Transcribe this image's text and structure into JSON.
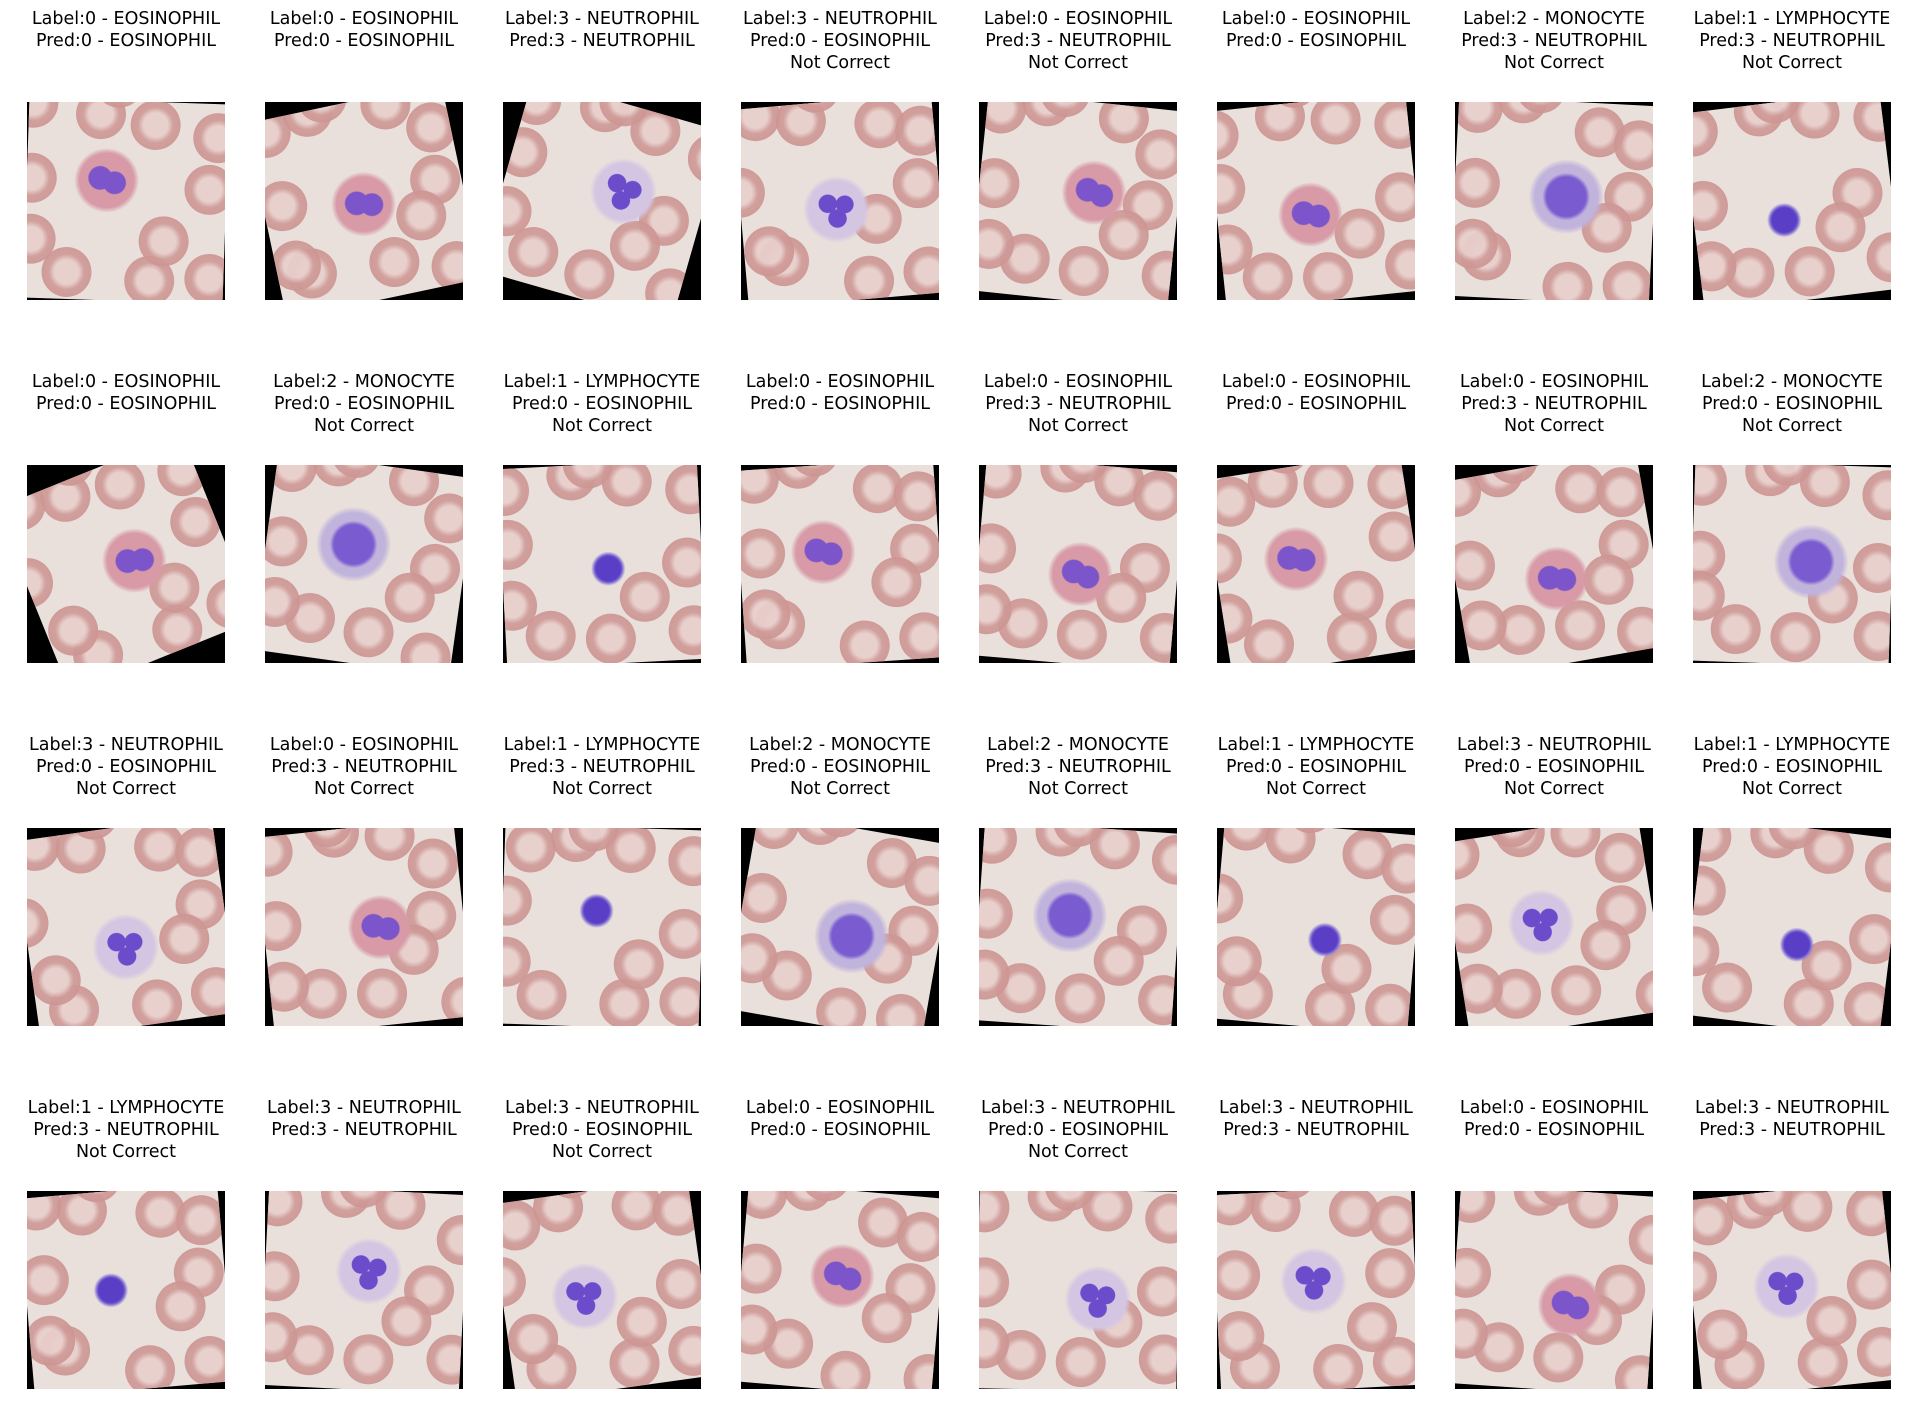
{
  "palette": {
    "cytoplasm": "#c9b8d8",
    "nucleus": "#6a4bc8",
    "rbc": "#cf9b98",
    "background": "#e9e0dc"
  },
  "panels": [
    {
      "label": "Label:0 - EOSINOPHIL",
      "pred": "Pred:0 - EOSINOPHIL",
      "status": "",
      "cell_type": "eosinophil",
      "rotation_deg": 2
    },
    {
      "label": "Label:0 - EOSINOPHIL",
      "pred": "Pred:0 - EOSINOPHIL",
      "status": "",
      "cell_type": "eosinophil",
      "rotation_deg": -12
    },
    {
      "label": "Label:3 - NEUTROPHIL",
      "pred": "Pred:3 - NEUTROPHIL",
      "status": "",
      "cell_type": "neutrophil",
      "rotation_deg": 16
    },
    {
      "label": "Label:3 - NEUTROPHIL",
      "pred": "Pred:0 - EOSINOPHIL",
      "status": "Not Correct",
      "cell_type": "neutrophil",
      "rotation_deg": -5
    },
    {
      "label": "Label:0 - EOSINOPHIL",
      "pred": "Pred:3 - NEUTROPHIL",
      "status": "Not Correct",
      "cell_type": "eosinophil",
      "rotation_deg": 6
    },
    {
      "label": "Label:0 - EOSINOPHIL",
      "pred": "Pred:0 - EOSINOPHIL",
      "status": "",
      "cell_type": "eosinophil",
      "rotation_deg": -6
    },
    {
      "label": "Label:2 - MONOCYTE",
      "pred": "Pred:3 - NEUTROPHIL",
      "status": "Not Correct",
      "cell_type": "monocyte",
      "rotation_deg": 3
    },
    {
      "label": "Label:1 - LYMPHOCYTE",
      "pred": "Pred:3 - NEUTROPHIL",
      "status": "Not Correct",
      "cell_type": "lymphocyte",
      "rotation_deg": -7
    },
    {
      "label": "Label:0 - EOSINOPHIL",
      "pred": "Pred:0 - EOSINOPHIL",
      "status": "",
      "cell_type": "eosinophil",
      "rotation_deg": -22
    },
    {
      "label": "Label:2 - MONOCYTE",
      "pred": "Pred:0 - EOSINOPHIL",
      "status": "Not Correct",
      "cell_type": "monocyte",
      "rotation_deg": 8
    },
    {
      "label": "Label:1 - LYMPHOCYTE",
      "pred": "Pred:0 - EOSINOPHIL",
      "status": "Not Correct",
      "cell_type": "lymphocyte",
      "rotation_deg": -3
    },
    {
      "label": "Label:0 - EOSINOPHIL",
      "pred": "Pred:0 - EOSINOPHIL",
      "status": "",
      "cell_type": "eosinophil",
      "rotation_deg": -4
    },
    {
      "label": "Label:0 - EOSINOPHIL",
      "pred": "Pred:3 - NEUTROPHIL",
      "status": "Not Correct",
      "cell_type": "eosinophil",
      "rotation_deg": 5
    },
    {
      "label": "Label:0 - EOSINOPHIL",
      "pred": "Pred:0 - EOSINOPHIL",
      "status": "",
      "cell_type": "eosinophil",
      "rotation_deg": -9
    },
    {
      "label": "Label:0 - EOSINOPHIL",
      "pred": "Pred:3 - NEUTROPHIL",
      "status": "Not Correct",
      "cell_type": "eosinophil",
      "rotation_deg": -10
    },
    {
      "label": "Label:2 - MONOCYTE",
      "pred": "Pred:0 - EOSINOPHIL",
      "status": "Not Correct",
      "cell_type": "monocyte",
      "rotation_deg": 2
    },
    {
      "label": "Label:3 - NEUTROPHIL",
      "pred": "Pred:0 - EOSINOPHIL",
      "status": "Not Correct",
      "cell_type": "neutrophil",
      "rotation_deg": -8
    },
    {
      "label": "Label:0 - EOSINOPHIL",
      "pred": "Pred:3 - NEUTROPHIL",
      "status": "Not Correct",
      "cell_type": "eosinophil",
      "rotation_deg": -6
    },
    {
      "label": "Label:1 - LYMPHOCYTE",
      "pred": "Pred:3 - NEUTROPHIL",
      "status": "Not Correct",
      "cell_type": "lymphocyte",
      "rotation_deg": 2
    },
    {
      "label": "Label:2 - MONOCYTE",
      "pred": "Pred:0 - EOSINOPHIL",
      "status": "Not Correct",
      "cell_type": "monocyte",
      "rotation_deg": 10
    },
    {
      "label": "Label:2 - MONOCYTE",
      "pred": "Pred:3 - NEUTROPHIL",
      "status": "Not Correct",
      "cell_type": "monocyte",
      "rotation_deg": 4
    },
    {
      "label": "Label:1 - LYMPHOCYTE",
      "pred": "Pred:0 - EOSINOPHIL",
      "status": "Not Correct",
      "cell_type": "lymphocyte",
      "rotation_deg": 5
    },
    {
      "label": "Label:3 - NEUTROPHIL",
      "pred": "Pred:0 - EOSINOPHIL",
      "status": "Not Correct",
      "cell_type": "neutrophil",
      "rotation_deg": -9
    },
    {
      "label": "Label:1 - LYMPHOCYTE",
      "pred": "Pred:0 - EOSINOPHIL",
      "status": "Not Correct",
      "cell_type": "lymphocyte",
      "rotation_deg": 7
    },
    {
      "label": "Label:1 - LYMPHOCYTE",
      "pred": "Pred:3 - NEUTROPHIL",
      "status": "Not Correct",
      "cell_type": "lymphocyte",
      "rotation_deg": -5
    },
    {
      "label": "Label:3 - NEUTROPHIL",
      "pred": "Pred:3 - NEUTROPHIL",
      "status": "",
      "cell_type": "neutrophil",
      "rotation_deg": 3
    },
    {
      "label": "Label:3 - NEUTROPHIL",
      "pred": "Pred:0 - EOSINOPHIL",
      "status": "Not Correct",
      "cell_type": "neutrophil",
      "rotation_deg": -8
    },
    {
      "label": "Label:0 - EOSINOPHIL",
      "pred": "Pred:0 - EOSINOPHIL",
      "status": "",
      "cell_type": "eosinophil",
      "rotation_deg": 5
    },
    {
      "label": "Label:3 - NEUTROPHIL",
      "pred": "Pred:0 - EOSINOPHIL",
      "status": "Not Correct",
      "cell_type": "neutrophil",
      "rotation_deg": 1
    },
    {
      "label": "Label:3 - NEUTROPHIL",
      "pred": "Pred:3 - NEUTROPHIL",
      "status": "",
      "cell_type": "neutrophil",
      "rotation_deg": -3
    },
    {
      "label": "Label:0 - EOSINOPHIL",
      "pred": "Pred:0 - EOSINOPHIL",
      "status": "",
      "cell_type": "eosinophil",
      "rotation_deg": 4
    },
    {
      "label": "Label:3 - NEUTROPHIL",
      "pred": "Pred:3 - NEUTROPHIL",
      "status": "",
      "cell_type": "neutrophil",
      "rotation_deg": -6
    }
  ]
}
